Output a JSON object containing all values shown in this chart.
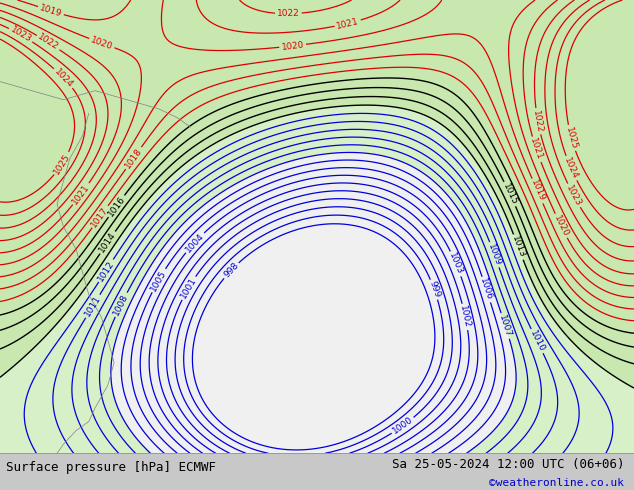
{
  "title_left": "Surface pressure [hPa] ECMWF",
  "title_right": "Sa 25-05-2024 12:00 UTC (06+06)",
  "credit": "©weatheronline.co.uk",
  "figsize": [
    6.34,
    4.9
  ],
  "dpi": 100,
  "bg_color": "#c8c8c8",
  "bottom_bar_color": "#c8c8c8",
  "font_color_black": "#000000",
  "font_color_blue": "#0000cc",
  "title_fontsize": 9,
  "credit_fontsize": 8,
  "contour_color_low": "#0000dd",
  "contour_color_mid": "#000000",
  "contour_color_high": "#dd0000",
  "land_color": "#c8e8b0",
  "sea_color": "#f0f0f0"
}
